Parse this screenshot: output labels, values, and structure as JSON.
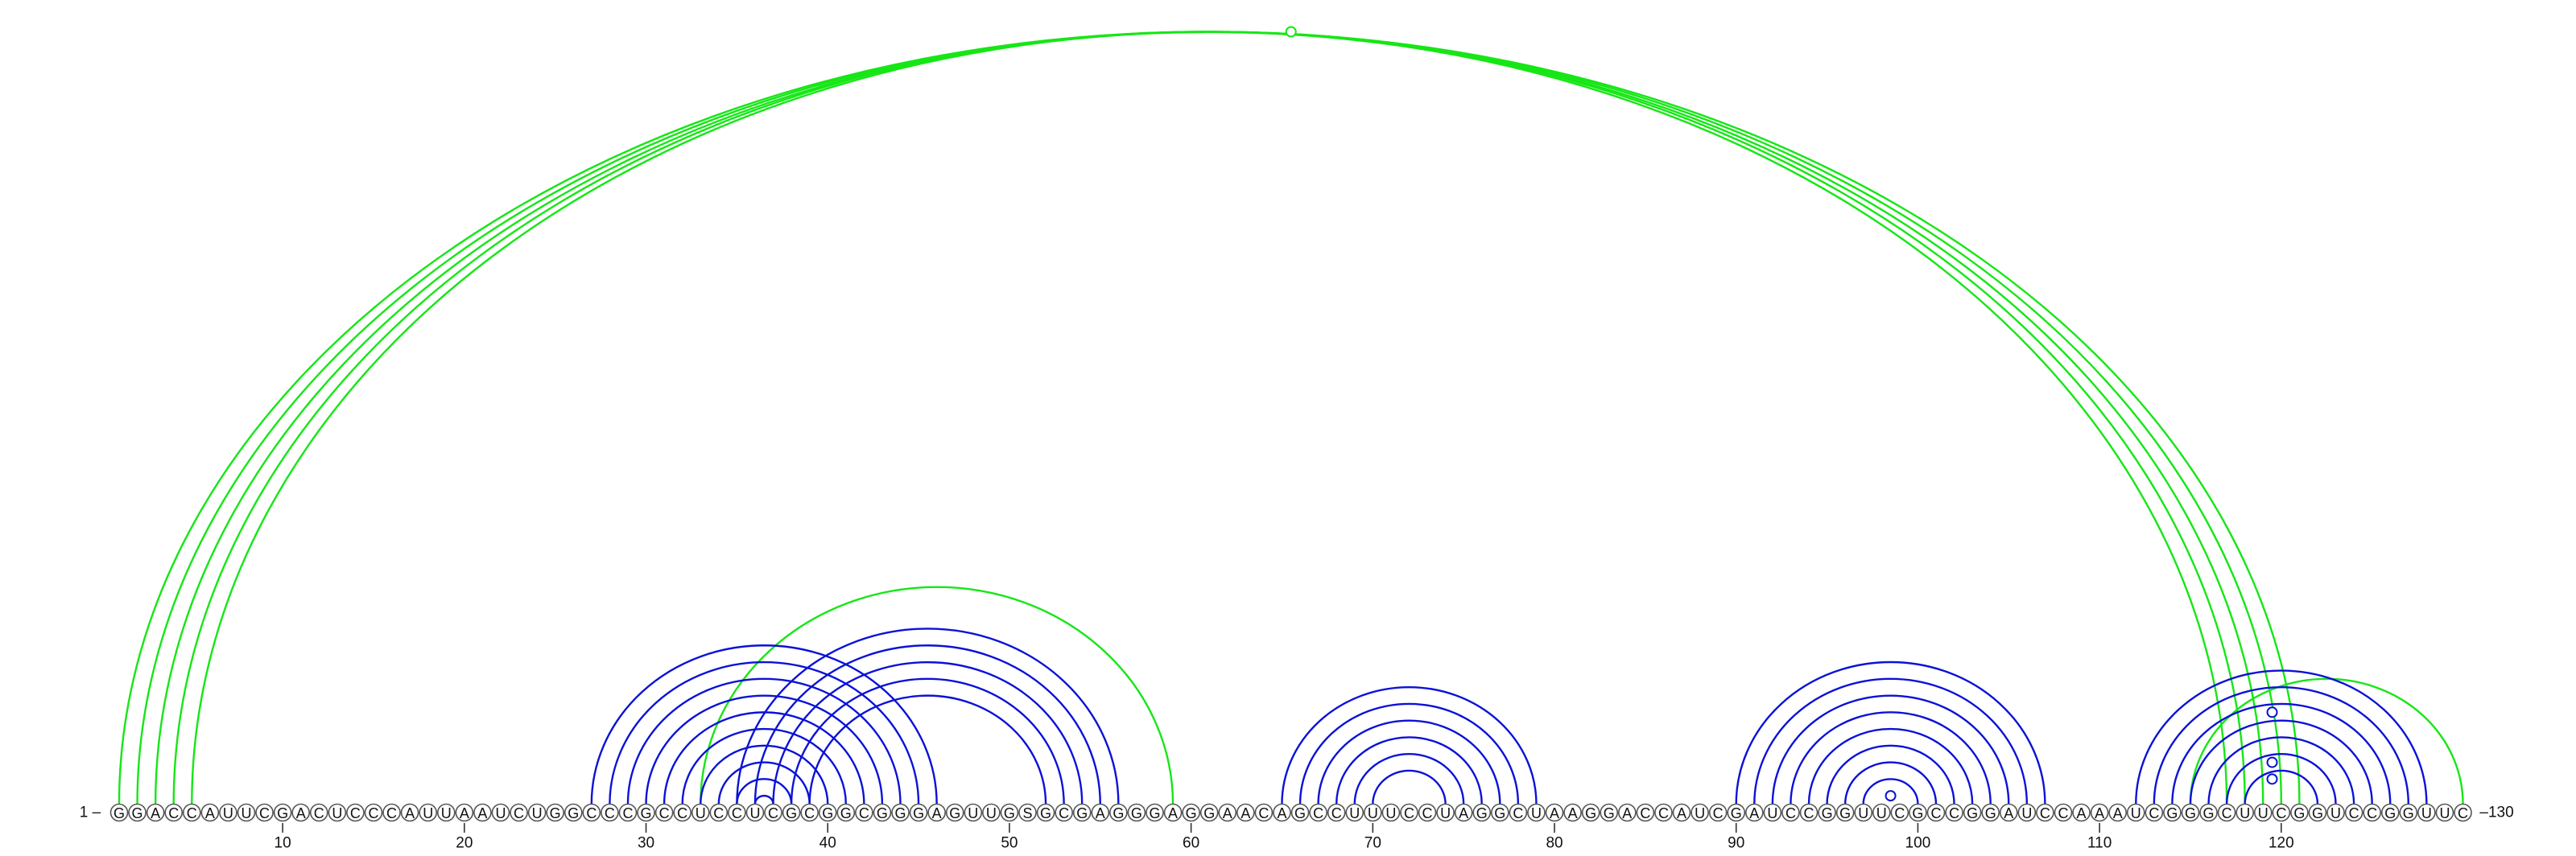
{
  "sequence": "GGACCAUUCGACUCCCAUUAAUCUGGCCCGCCUCCUCGCGGCGGGAGUUGSGCGAGGGAGGAACAGCCUUUCCUAGGCUAAGGACCAUCGAUCCGGUUCGCCGGAUCCAAAUCGGGCUUCGGUCCGGUUC",
  "start_label": "1 –",
  "end_label": "–130",
  "ticks": [
    "10",
    "20",
    "30",
    "40",
    "50",
    "60",
    "70",
    "80",
    "90",
    "100",
    "110",
    "120"
  ],
  "colors": {
    "blue": "#0b12d6",
    "green": "#16e616"
  },
  "blue_helices": [
    {
      "i": 27,
      "j": 46,
      "len": 10
    },
    {
      "i": 35,
      "j": 56,
      "len": 5
    },
    {
      "i": 65,
      "j": 79,
      "len": 6
    },
    {
      "i": 90,
      "j": 107,
      "len": 8
    },
    {
      "i": 112,
      "j": 128,
      "len": 7
    }
  ],
  "green_helices": [
    {
      "i": 1,
      "j": 121,
      "len": 5
    },
    {
      "i": 33,
      "j": 59,
      "len": 1
    },
    {
      "i": 115,
      "j": 130,
      "len": 1
    }
  ],
  "markers": [
    {
      "color": "green",
      "i": 1,
      "j": 130
    },
    {
      "color": "blue",
      "i": 98,
      "j": 99
    },
    {
      "color": "blue",
      "i": 117,
      "j": 122
    },
    {
      "color": "blue",
      "i": 114,
      "j": 125
    },
    {
      "color": "blue",
      "i": 118,
      "j": 121
    }
  ]
}
